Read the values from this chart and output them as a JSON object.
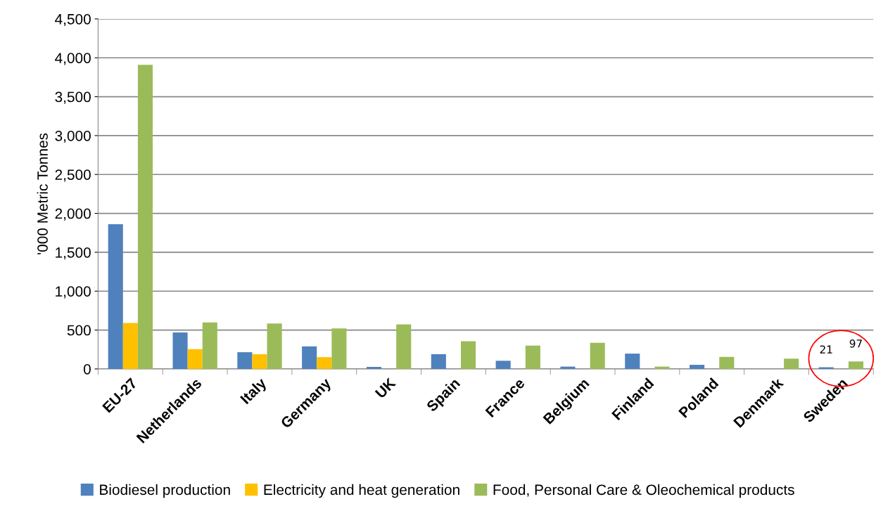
{
  "chart_data": {
    "type": "bar",
    "ylabel": "'000 Metric Tonnes",
    "categories": [
      "EU-27",
      "Netherlands",
      "Italy",
      "Germany",
      "UK",
      "Spain",
      "France",
      "Belgium",
      "Finland",
      "Poland",
      "Denmark",
      "Sweden"
    ],
    "series": [
      {
        "name": "Biodiesel production",
        "color": "#4f81bd",
        "values": [
          1860,
          470,
          215,
          290,
          26,
          190,
          105,
          30,
          197,
          53,
          null,
          21
        ],
        "value_labels": [
          null,
          null,
          null,
          null,
          null,
          null,
          null,
          null,
          null,
          null,
          null,
          "21"
        ]
      },
      {
        "name": "Electricity and heat generation",
        "color": "#ffc000",
        "values": [
          590,
          255,
          190,
          152,
          null,
          null,
          null,
          null,
          null,
          null,
          null,
          null
        ]
      },
      {
        "name": "Food, Personal Care & Oleochemical products",
        "color": "#9bbb59",
        "values": [
          3910,
          598,
          585,
          521,
          572,
          356,
          300,
          336,
          30,
          155,
          132,
          97
        ],
        "value_labels": [
          null,
          null,
          null,
          null,
          null,
          null,
          null,
          null,
          null,
          null,
          null,
          "97"
        ]
      }
    ],
    "ylim": [
      0,
      4500
    ],
    "yticks": [
      {
        "value": 0,
        "label": "0"
      },
      {
        "value": 500,
        "label": "500"
      },
      {
        "value": 1000,
        "label": "1,000"
      },
      {
        "value": 1500,
        "label": "1,500"
      },
      {
        "value": 2000,
        "label": "2,000"
      },
      {
        "value": 2500,
        "label": "2,500"
      },
      {
        "value": 3000,
        "label": "3,000"
      },
      {
        "value": 3500,
        "label": "3,500"
      },
      {
        "value": 4000,
        "label": "4,000"
      },
      {
        "value": 4500,
        "label": "4,500"
      }
    ],
    "grid": "y",
    "legend": "bottom"
  }
}
